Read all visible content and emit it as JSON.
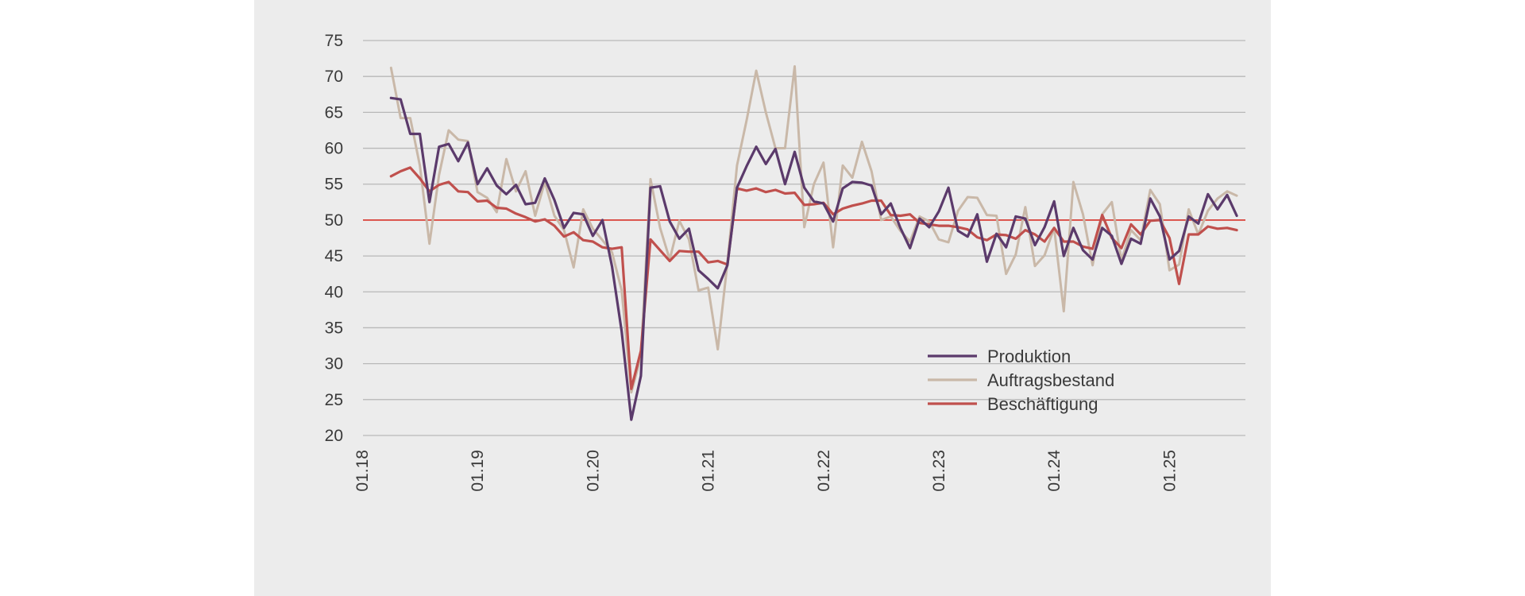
{
  "chart_data": {
    "type": "line",
    "title": "",
    "xlabel": "",
    "ylabel": "",
    "ylim": [
      20,
      75
    ],
    "yticks": [
      20,
      25,
      30,
      35,
      40,
      45,
      50,
      55,
      60,
      65,
      70,
      75
    ],
    "xticks": [
      "01.18",
      "01.19",
      "01.20",
      "01.21",
      "01.22",
      "01.23",
      "01.24",
      "01.25"
    ],
    "x_start": "01.18",
    "x_interval": "month",
    "reference_line": {
      "value": 50,
      "color": "#d9342b"
    },
    "grid": true,
    "legend_position": "lower-right",
    "series": [
      {
        "name": "Produktion",
        "color": "#5b3a6b",
        "start": "04.18",
        "values": [
          67.0,
          66.8,
          62.0,
          62.0,
          52.5,
          60.2,
          60.6,
          58.2,
          60.8,
          55.0,
          57.2,
          54.8,
          53.6,
          54.9,
          52.2,
          52.4,
          55.8,
          52.8,
          48.9,
          51.0,
          50.8,
          47.8,
          50.0,
          43.5,
          34.5,
          22.2,
          28.3,
          54.5,
          54.7,
          49.8,
          47.4,
          48.8,
          43.0,
          41.8,
          40.5,
          43.7,
          54.5,
          57.5,
          60.2,
          57.8,
          59.9,
          55.0,
          59.5,
          54.5,
          52.6,
          52.3,
          49.8,
          54.4,
          55.3,
          55.2,
          54.8,
          50.8,
          52.3,
          48.9,
          46.1,
          50.2,
          49.0,
          51.2,
          54.5,
          48.5,
          47.7,
          50.8,
          44.2,
          48.1,
          46.2,
          50.5,
          50.2,
          46.5,
          49.0,
          52.6,
          45.0,
          48.9,
          45.8,
          44.5,
          48.9,
          47.8,
          43.9,
          47.4,
          46.7,
          53.0,
          50.5,
          44.5,
          45.7,
          50.5,
          49.5,
          53.6,
          51.5,
          53.5,
          50.6
        ]
      },
      {
        "name": "Auftragsbestand",
        "color": "#c9b8a8",
        "start": "04.18",
        "values": [
          71.2,
          64.2,
          64.2,
          57.6,
          46.7,
          56.3,
          62.5,
          61.2,
          61.0,
          53.9,
          53.1,
          51.1,
          58.5,
          54.0,
          56.8,
          50.6,
          55.3,
          50.6,
          48.6,
          43.4,
          51.5,
          48.8,
          47.2,
          45.5,
          40.2,
          26.0,
          31.0,
          55.7,
          48.9,
          44.5,
          49.9,
          47.3,
          40.2,
          40.6,
          32.0,
          44.0,
          57.6,
          63.9,
          70.8,
          65.0,
          60.0,
          60.0,
          71.4,
          49.0,
          55.0,
          58.0,
          46.2,
          57.6,
          55.9,
          60.9,
          56.8,
          50.0,
          50.5,
          48.5,
          47.0,
          50.5,
          49.8,
          47.3,
          46.9,
          51.3,
          53.2,
          53.1,
          50.7,
          50.6,
          42.5,
          45.2,
          51.8,
          43.6,
          45.1,
          48.9,
          37.3,
          55.3,
          50.8,
          43.7,
          50.8,
          52.5,
          44.4,
          48.6,
          47.2,
          54.2,
          52.2,
          43.0,
          43.8,
          51.5,
          48.0,
          51.3,
          53.0,
          54.0,
          53.4
        ]
      },
      {
        "name": "Beschäftigung",
        "color": "#c0504d",
        "start": "04.18",
        "values": [
          56.1,
          56.8,
          57.3,
          55.8,
          54.0,
          54.9,
          55.3,
          54.0,
          53.9,
          52.6,
          52.7,
          51.7,
          51.6,
          50.9,
          50.4,
          49.8,
          50.1,
          49.2,
          47.7,
          48.3,
          47.2,
          47.0,
          46.2,
          46.0,
          46.2,
          26.5,
          31.8,
          47.3,
          45.8,
          44.3,
          45.7,
          45.6,
          45.6,
          44.1,
          44.3,
          43.8,
          54.4,
          54.1,
          54.4,
          53.9,
          54.2,
          53.7,
          53.8,
          52.1,
          52.2,
          52.4,
          50.8,
          51.6,
          52.0,
          52.3,
          52.7,
          52.7,
          50.7,
          50.6,
          50.8,
          49.6,
          49.4,
          49.2,
          49.2,
          49.0,
          48.7,
          47.6,
          47.2,
          48.0,
          47.9,
          47.4,
          48.6,
          48.0,
          47.0,
          48.9,
          47.0,
          47.0,
          46.3,
          46.0,
          50.7,
          47.5,
          46.1,
          49.4,
          48.0,
          49.9,
          50.0,
          47.5,
          41.1,
          48.0,
          48.0,
          49.1,
          48.8,
          48.9,
          48.6
        ]
      }
    ]
  }
}
